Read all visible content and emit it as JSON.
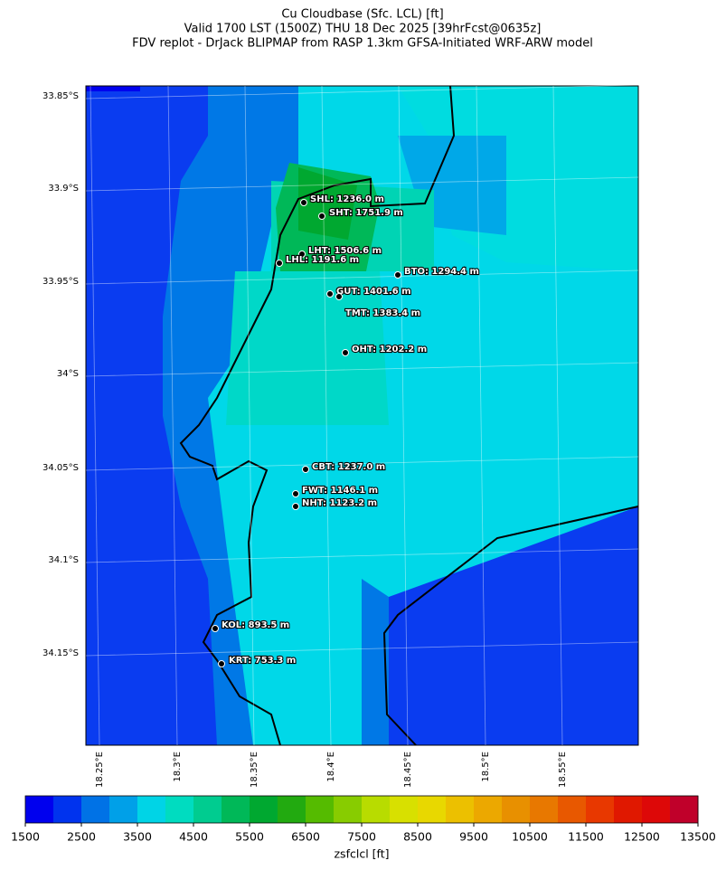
{
  "title": [
    "Cu Cloudbase (Sfc. LCL) [ft]",
    "Valid 1700 LST (1500Z) THU 18 Dec 2025 [39hrFcst@0635z]",
    "FDV replot - DrJack BLIPMAP from RASP 1.3km GFSA-Initiated WRF-ARW model"
  ],
  "lat_labels": [
    "33.85°S",
    "33.9°S",
    "33.95°S",
    "34°S",
    "34.05°S",
    "34.1°S",
    "34.15°S"
  ],
  "lon_labels": [
    "18.25°E",
    "18.3°E",
    "18.35°E",
    "18.4°E",
    "18.45°E",
    "18.5°E",
    "18.55°E"
  ],
  "stations": [
    {
      "label": "SHL: 1236.0 m"
    },
    {
      "label": "SHT: 1751.9 m"
    },
    {
      "label": "LHT: 1506.6 m"
    },
    {
      "label": "LHL: 1191.6 m"
    },
    {
      "label": "BTO: 1294.4 m"
    },
    {
      "label": "GUT: 1401.6 m"
    },
    {
      "label": "TMT: 1383.4 m"
    },
    {
      "label": "OHT: 1202.2 m"
    },
    {
      "label": "CBT: 1237.0 m"
    },
    {
      "label": "FWT: 1146.1 m"
    },
    {
      "label": "NHT: 1123.2 m"
    },
    {
      "label": "KOL: 893.5 m"
    },
    {
      "label": "KRT: 753.3 m"
    }
  ],
  "colorbar": {
    "label": "zsfclcl [ft]",
    "ticks": [
      1500,
      2500,
      3500,
      4500,
      5500,
      6500,
      7500,
      8500,
      9500,
      10500,
      11500,
      12500,
      13500
    ],
    "colors": [
      "#0000ee",
      "#0033ee",
      "#0072e6",
      "#00a0e8",
      "#00d4e6",
      "#00dcc0",
      "#00cc90",
      "#00b858",
      "#00a830",
      "#22aa10",
      "#55bb00",
      "#88cc00",
      "#b8dc00",
      "#d8e000",
      "#e8d800",
      "#ecc000",
      "#eca800",
      "#e89000",
      "#e87800",
      "#e85800",
      "#e83800",
      "#e01800",
      "#dd0808",
      "#c0002a"
    ]
  }
}
